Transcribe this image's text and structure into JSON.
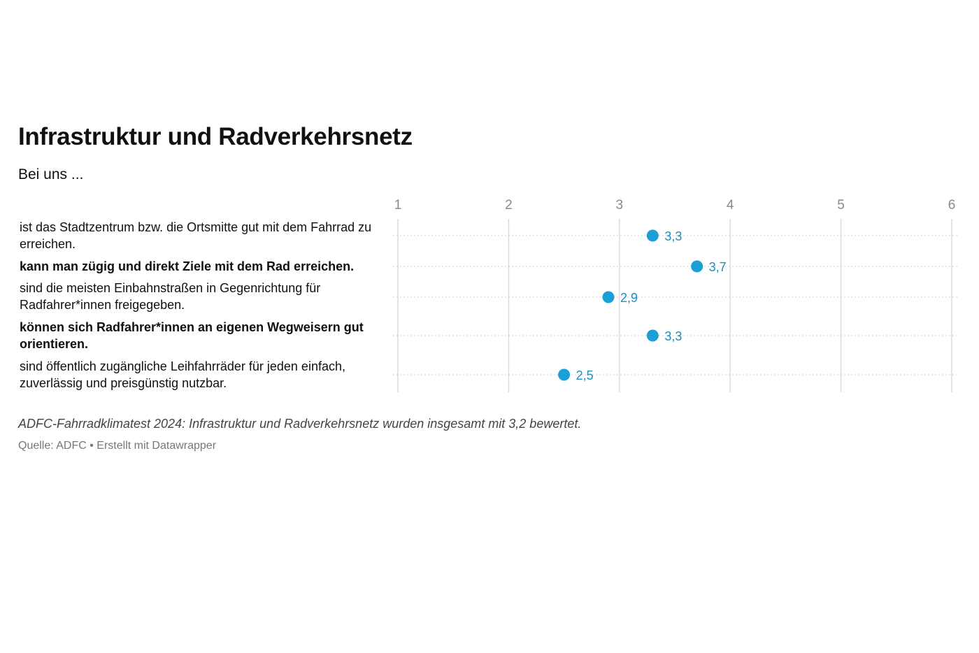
{
  "header": {
    "title": "Infrastruktur und Radverkehrsnetz",
    "subtitle": "Bei uns ..."
  },
  "chart_data": {
    "type": "scatter",
    "title": "Infrastruktur und Radverkehrsnetz",
    "subtitle": "Bei uns ...",
    "xlim": [
      1,
      6
    ],
    "x_ticks": [
      "1",
      "2",
      "3",
      "4",
      "5",
      "6"
    ],
    "grid": true,
    "categories": [
      "ist das Stadtzentrum bzw. die Ortsmitte gut mit dem Fahrrad zu erreichen.",
      "kann man zügig und direkt Ziele mit dem Rad erreichen.",
      "sind die meisten Einbahnstraßen in Gegenrichtung für Radfahrer*innen freigegeben.",
      "können sich Radfahrer*innen an eigenen Wegweisern gut orientieren.",
      "sind öffentlich zugängliche Leihfahrräder für jeden einfach, zuverlässig und preisgünstig nutzbar."
    ],
    "values": [
      3.3,
      3.7,
      2.9,
      3.3,
      2.5
    ],
    "value_labels": [
      "3,3",
      "3,7",
      "2,9",
      "3,3",
      "2,5"
    ],
    "bold_rows": [
      false,
      true,
      false,
      true,
      false
    ],
    "point_color": "#1a9fd6",
    "label_color": "#1a8fc0"
  },
  "footer": {
    "notes": "ADFC-Fahrradklimatest 2024: Infrastruktur und Radverkehrsnetz wurden insgesamt mit 3,2 bewertet.",
    "source": "Quelle: ADFC • Erstellt mit Datawrapper"
  }
}
